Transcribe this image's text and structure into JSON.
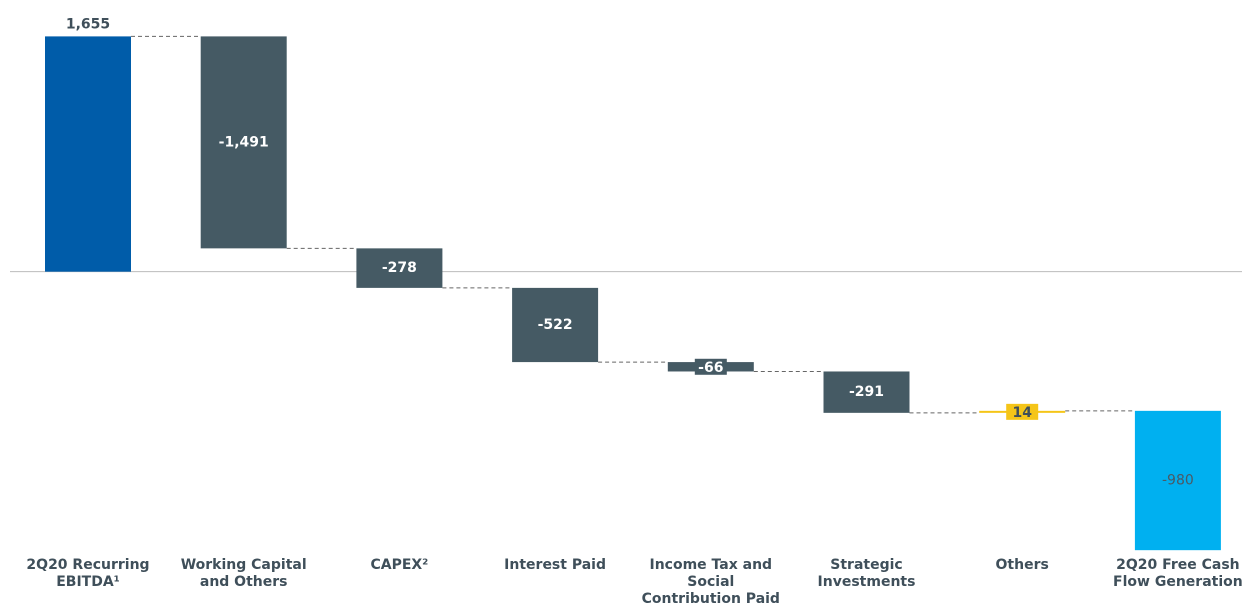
{
  "chart_data": {
    "type": "waterfall",
    "categories": [
      "2Q20 Recurring EBITDA¹",
      "Working Capital and Others",
      "CAPEX²",
      "Interest Paid",
      "Income Tax and Social Contribution Paid",
      "Strategic Investments",
      "Others",
      "2Q20 Free Cash Flow Generation"
    ],
    "values": [
      1655,
      -1491,
      -278,
      -522,
      -66,
      -291,
      14,
      -980
    ],
    "value_labels": [
      "1,655",
      "-1,491",
      "-278",
      "-522",
      "-66",
      "-291",
      "14",
      "-980"
    ],
    "colors": [
      "#005ca9",
      "#455a64",
      "#455a64",
      "#455a64",
      "#455a64",
      "#455a64",
      "#f5c518",
      "#00b0f0"
    ],
    "ylim": [
      -2000,
      1700
    ]
  }
}
